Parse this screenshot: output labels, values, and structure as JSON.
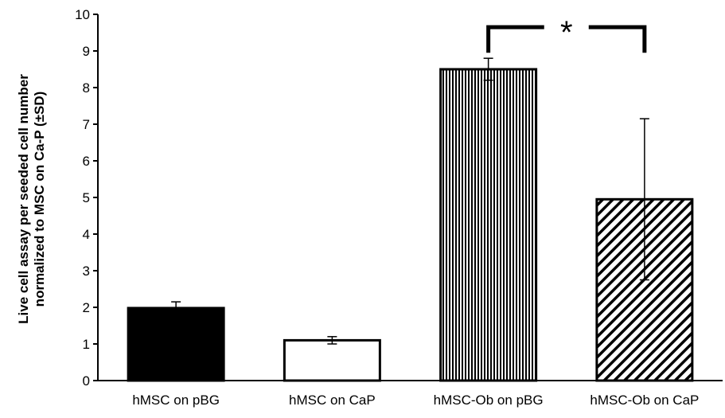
{
  "chart_data": {
    "type": "bar",
    "categories": [
      "hMSC on pBG",
      "hMSC on CaP",
      "hMSC-Ob on pBG",
      "hMSC-Ob on CaP"
    ],
    "values": [
      1.98,
      1.1,
      8.5,
      4.95
    ],
    "errors": [
      0.17,
      0.1,
      0.3,
      2.2
    ],
    "fills": [
      "solid-black",
      "white",
      "vertical-stripes",
      "diagonal-stripes"
    ],
    "title": "",
    "xlabel": "",
    "ylabel_lines": [
      "Live cell assay per seeded cell number",
      "normalized to MSC on Ca-P (±SD)"
    ],
    "ylim": [
      0,
      10
    ],
    "yticks": [
      0,
      1,
      2,
      3,
      4,
      5,
      6,
      7,
      8,
      9,
      10
    ],
    "grid": false,
    "legend": "none",
    "significance": {
      "between": [
        "hMSC-Ob on pBG",
        "hMSC-Ob on CaP"
      ],
      "label": "*"
    },
    "colors": {
      "bar_outline": "#000000",
      "solid_fill": "#000000",
      "background": "#ffffff"
    }
  }
}
